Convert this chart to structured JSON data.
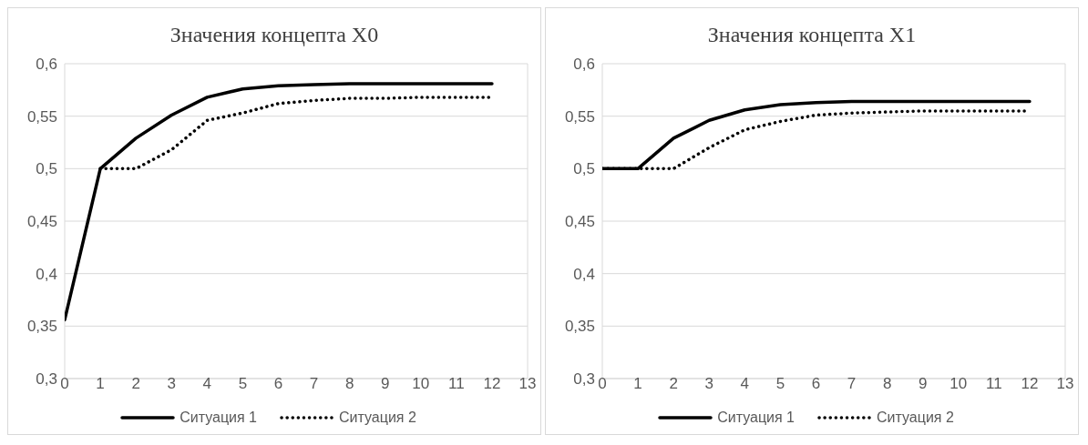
{
  "chart_data": [
    {
      "type": "line",
      "title": "Значения концепта X0",
      "x": [
        0,
        1,
        2,
        3,
        4,
        5,
        6,
        7,
        8,
        9,
        10,
        11,
        12
      ],
      "series": [
        {
          "name": "Ситуация 1",
          "color": "#000000",
          "line_style": "solid",
          "values": [
            0.356,
            0.5,
            0.529,
            0.551,
            0.568,
            0.576,
            0.579,
            0.58,
            0.581,
            0.581,
            0.581,
            0.581,
            0.581
          ]
        },
        {
          "name": "Ситуация 2",
          "color": "#000000",
          "line_style": "dotted",
          "values": [
            null,
            0.5,
            0.5,
            0.518,
            0.546,
            0.553,
            0.562,
            0.565,
            0.567,
            0.567,
            0.568,
            0.568,
            0.568
          ]
        }
      ],
      "xlim": [
        0,
        13
      ],
      "xticks": [
        0,
        1,
        2,
        3,
        4,
        5,
        6,
        7,
        8,
        9,
        10,
        11,
        12,
        13
      ],
      "ylim": [
        0.3,
        0.6
      ],
      "yticks": [
        {
          "value": 0.3,
          "label": "0,3"
        },
        {
          "value": 0.35,
          "label": "0,35"
        },
        {
          "value": 0.4,
          "label": "0,4"
        },
        {
          "value": 0.45,
          "label": "0,45"
        },
        {
          "value": 0.5,
          "label": "0,5"
        },
        {
          "value": 0.55,
          "label": "0,55"
        },
        {
          "value": 0.6,
          "label": "0,6"
        }
      ],
      "grid": true,
      "legend": "bottom",
      "marker": "none"
    },
    {
      "type": "line",
      "title": "Значения концепта X1",
      "x": [
        0,
        1,
        2,
        3,
        4,
        5,
        6,
        7,
        8,
        9,
        10,
        11,
        12
      ],
      "series": [
        {
          "name": "Ситуация 1",
          "color": "#000000",
          "line_style": "solid",
          "values": [
            0.5,
            0.5,
            0.529,
            0.546,
            0.556,
            0.561,
            0.563,
            0.564,
            0.564,
            0.564,
            0.564,
            0.564,
            0.564
          ]
        },
        {
          "name": "Ситуация 2",
          "color": "#000000",
          "line_style": "dotted",
          "values": [
            0.5,
            0.5,
            0.5,
            0.52,
            0.537,
            0.545,
            0.551,
            0.553,
            0.554,
            0.555,
            0.555,
            0.555,
            0.555
          ]
        }
      ],
      "xlim": [
        0,
        13
      ],
      "xticks": [
        0,
        1,
        2,
        3,
        4,
        5,
        6,
        7,
        8,
        9,
        10,
        11,
        12,
        13
      ],
      "ylim": [
        0.3,
        0.6
      ],
      "yticks": [
        {
          "value": 0.3,
          "label": "0,3"
        },
        {
          "value": 0.35,
          "label": "0,35"
        },
        {
          "value": 0.4,
          "label": "0,4"
        },
        {
          "value": 0.45,
          "label": "0,45"
        },
        {
          "value": 0.5,
          "label": "0,5"
        },
        {
          "value": 0.55,
          "label": "0,55"
        },
        {
          "value": 0.6,
          "label": "0,6"
        }
      ],
      "grid": true,
      "legend": "bottom",
      "marker": "none"
    }
  ]
}
